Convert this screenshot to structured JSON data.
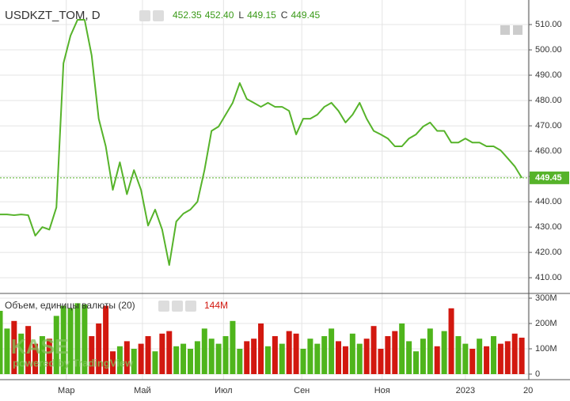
{
  "chart_data": [
    {
      "type": "line",
      "title": "USDKZT_TOM, D",
      "ohlc": [
        {
          "value": "452.35"
        },
        {
          "value": "452.40"
        },
        {
          "key": "L",
          "value": "449.15"
        },
        {
          "key": "C",
          "value": "449.45"
        }
      ],
      "x": [
        0,
        1,
        2,
        3,
        4,
        5,
        6,
        7,
        8,
        9,
        10,
        11,
        12,
        13,
        14,
        15,
        16,
        17,
        18,
        19,
        20,
        21,
        22,
        23,
        24,
        25,
        26,
        27,
        28,
        29,
        30,
        31,
        32,
        33,
        34,
        35,
        36,
        37,
        38,
        39,
        40,
        41,
        42,
        43,
        44,
        45,
        46,
        47,
        48,
        49,
        50,
        51,
        52,
        53,
        54,
        55,
        56,
        57,
        58,
        59,
        60,
        61,
        62,
        63,
        64,
        65,
        66,
        67,
        68,
        69,
        70,
        71,
        72,
        73,
        74
      ],
      "series": [
        {
          "name": "USDKZT_TOM",
          "color": "#56b32a",
          "values": [
            435,
            435,
            434.7,
            435,
            434.7,
            426.6,
            430,
            429,
            437.8,
            494.7,
            505.6,
            511.9,
            511.9,
            497.8,
            472.8,
            461.9,
            444.7,
            455.6,
            443,
            452.5,
            444.7,
            430.6,
            436.9,
            429,
            415,
            432.2,
            435.3,
            436.9,
            440,
            452.5,
            468,
            469.7,
            474.4,
            479.1,
            486.9,
            480.6,
            479.1,
            477.5,
            479.1,
            477.5,
            477.5,
            475.9,
            466.6,
            472.8,
            472.8,
            474.4,
            477.5,
            479.1,
            475.9,
            471.3,
            474.4,
            479.1,
            472.8,
            468,
            466.6,
            465,
            461.9,
            461.9,
            465,
            466.6,
            469.7,
            471.3,
            468,
            468,
            463.4,
            463.4,
            465,
            463.4,
            463.4,
            461.9,
            461.9,
            460.3,
            457.2,
            454,
            449.45
          ]
        }
      ],
      "xlim": [
        0,
        75
      ],
      "xticks": [
        {
          "value": 9.4,
          "label": "Мар"
        },
        {
          "value": 20.2,
          "label": "Май"
        },
        {
          "value": 31.7,
          "label": "Июл"
        },
        {
          "value": 42.8,
          "label": "Сен"
        },
        {
          "value": 54.2,
          "label": "Ноя"
        },
        {
          "value": 66.0,
          "label": "2023"
        },
        {
          "value": 74.9,
          "label": "20"
        }
      ],
      "ylim": [
        404.1,
        519.7
      ],
      "yticks": [
        {
          "value": 410,
          "label": "410.00"
        },
        {
          "value": 420,
          "label": "420.00"
        },
        {
          "value": 430,
          "label": "430.00"
        },
        {
          "value": 440,
          "label": "440.00"
        },
        {
          "value": 450,
          "label": "450.00"
        },
        {
          "value": 460,
          "label": "460.00"
        },
        {
          "value": 470,
          "label": "470.00"
        },
        {
          "value": 480,
          "label": "480.00"
        },
        {
          "value": 490,
          "label": "490.00"
        },
        {
          "value": 500,
          "label": "500.00"
        },
        {
          "value": 510,
          "label": "510.00"
        }
      ],
      "grid": true,
      "watermark": {
        "logo": "KASE",
        "credit": "powered by TradingView"
      }
    },
    {
      "type": "bar",
      "title": "Объем, единицы валюты (20)",
      "last_value_label": "144M",
      "up_color": "#4fb51c",
      "down_color": "#d2180f",
      "values": [
        250,
        180,
        210,
        160,
        190,
        120,
        150,
        140,
        230,
        270,
        260,
        280,
        275,
        150,
        200,
        270,
        90,
        110,
        130,
        100,
        120,
        150,
        90,
        160,
        170,
        110,
        120,
        100,
        130,
        180,
        140,
        120,
        150,
        210,
        100,
        130,
        140,
        200,
        110,
        150,
        120,
        170,
        160,
        100,
        140,
        120,
        150,
        180,
        130,
        110,
        160,
        120,
        140,
        190,
        100,
        150,
        170,
        200,
        130,
        90,
        140,
        180,
        110,
        170,
        260,
        150,
        120,
        100,
        140,
        110,
        150,
        120,
        130,
        160,
        144
      ],
      "ylim": [
        -15.6,
        315.6
      ],
      "yticks": [
        0,
        {
          "value": 100,
          "label": "100M"
        },
        {
          "value": 200,
          "label": "200M"
        },
        {
          "value": 300,
          "label": "300M"
        }
      ]
    }
  ]
}
